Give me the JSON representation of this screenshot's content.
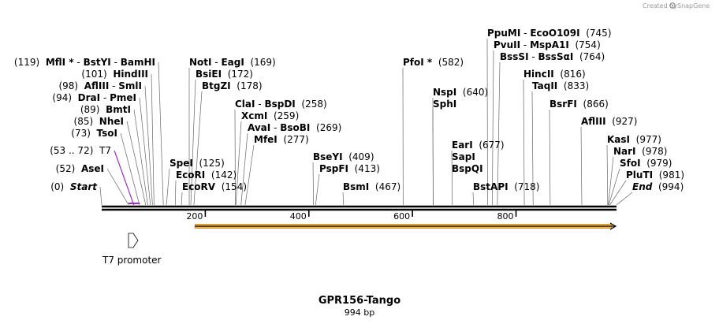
{
  "credit": {
    "text": "Created by",
    "brand": "SnapGene"
  },
  "title": "GPR156-Tango",
  "subtitle": "994 bp",
  "length": 994,
  "ticks": [
    {
      "label": "200",
      "pos": 200
    },
    {
      "label": "400",
      "pos": 400
    },
    {
      "label": "600",
      "pos": 600
    },
    {
      "label": "800",
      "pos": 800
    }
  ],
  "feature": {
    "label": "T7 promoter",
    "start": 53,
    "end": 72
  },
  "cds": {
    "start": 180,
    "end": 994
  },
  "labels": [
    {
      "id": "start",
      "parts": [
        {
          "t": "(0)",
          "s": "pos"
        },
        {
          "t": "  "
        },
        {
          "t": "Start",
          "s": "it"
        }
      ],
      "sites": [
        0
      ]
    },
    {
      "id": "asei",
      "parts": [
        {
          "t": "(52)",
          "s": "pos"
        },
        {
          "t": "  "
        },
        {
          "t": "AseI",
          "s": "enz"
        }
      ],
      "sites": [
        52
      ]
    },
    {
      "id": "t7",
      "parts": [
        {
          "t": "(53 .. 72)",
          "s": "pos"
        },
        {
          "t": "  "
        },
        {
          "t": "T7",
          "s": "pos"
        }
      ],
      "sites": [
        62
      ],
      "purple": true
    },
    {
      "id": "tsoi",
      "parts": [
        {
          "t": "(73)",
          "s": "pos"
        },
        {
          "t": "  "
        },
        {
          "t": "TsoI",
          "s": "enz"
        }
      ],
      "sites": [
        73
      ]
    },
    {
      "id": "nhei",
      "parts": [
        {
          "t": "(85)",
          "s": "pos"
        },
        {
          "t": "  "
        },
        {
          "t": "NheI",
          "s": "enz"
        }
      ],
      "sites": [
        85
      ]
    },
    {
      "id": "bmti",
      "parts": [
        {
          "t": "(89)",
          "s": "pos"
        },
        {
          "t": "  "
        },
        {
          "t": "BmtI",
          "s": "enz"
        }
      ],
      "sites": [
        89
      ]
    },
    {
      "id": "drai",
      "parts": [
        {
          "t": "(94)",
          "s": "pos"
        },
        {
          "t": "  "
        },
        {
          "t": "DraI",
          "s": "enz"
        },
        {
          "t": " - "
        },
        {
          "t": "PmeI",
          "s": "enz"
        }
      ],
      "sites": [
        94
      ]
    },
    {
      "id": "afliii",
      "parts": [
        {
          "t": "(98)",
          "s": "pos"
        },
        {
          "t": "  "
        },
        {
          "t": "AflIII",
          "s": "enz"
        },
        {
          "t": " - "
        },
        {
          "t": "SmlI",
          "s": "enz"
        }
      ],
      "sites": [
        98
      ]
    },
    {
      "id": "hindiii",
      "parts": [
        {
          "t": "(101)",
          "s": "pos"
        },
        {
          "t": "  "
        },
        {
          "t": "HindIII",
          "s": "enz"
        }
      ],
      "sites": [
        101
      ]
    },
    {
      "id": "mfli",
      "parts": [
        {
          "t": "(119)",
          "s": "pos"
        },
        {
          "t": "  "
        },
        {
          "t": "MflI *",
          "s": "enz"
        },
        {
          "t": " - "
        },
        {
          "t": "BstYI",
          "s": "enz"
        },
        {
          "t": " - "
        },
        {
          "t": "BamHI",
          "s": "enz"
        }
      ],
      "sites": [
        119
      ]
    },
    {
      "id": "spei",
      "parts": [
        {
          "t": "SpeI",
          "s": "enz"
        },
        {
          "t": "  "
        },
        {
          "t": "(125)",
          "s": "pos"
        }
      ],
      "sites": [
        125
      ]
    },
    {
      "id": "ecori",
      "parts": [
        {
          "t": "EcoRI",
          "s": "enz"
        },
        {
          "t": "  "
        },
        {
          "t": "(142)",
          "s": "pos"
        }
      ],
      "sites": [
        142
      ]
    },
    {
      "id": "ecorv",
      "parts": [
        {
          "t": "EcoRV",
          "s": "enz"
        },
        {
          "t": "  "
        },
        {
          "t": "(154)",
          "s": "pos"
        }
      ],
      "sites": [
        154
      ]
    },
    {
      "id": "noti",
      "parts": [
        {
          "t": "NotI",
          "s": "enz"
        },
        {
          "t": " - "
        },
        {
          "t": "EagI",
          "s": "enz"
        },
        {
          "t": "  "
        },
        {
          "t": "(169)",
          "s": "pos"
        }
      ],
      "sites": [
        169
      ]
    },
    {
      "id": "bsiei",
      "parts": [
        {
          "t": "BsiEI",
          "s": "enz"
        },
        {
          "t": "  "
        },
        {
          "t": "(172)",
          "s": "pos"
        }
      ],
      "sites": [
        172
      ]
    },
    {
      "id": "btgzi",
      "parts": [
        {
          "t": "BtgZI",
          "s": "enz"
        },
        {
          "t": "  "
        },
        {
          "t": "(178)",
          "s": "pos"
        }
      ],
      "sites": [
        178
      ]
    },
    {
      "id": "clai",
      "parts": [
        {
          "t": "ClaI",
          "s": "enz"
        },
        {
          "t": " - "
        },
        {
          "t": "BspDI",
          "s": "enz"
        },
        {
          "t": "  "
        },
        {
          "t": "(258)",
          "s": "pos"
        }
      ],
      "sites": [
        258
      ]
    },
    {
      "id": "xcmi",
      "parts": [
        {
          "t": "XcmI",
          "s": "enz"
        },
        {
          "t": "  "
        },
        {
          "t": "(259)",
          "s": "pos"
        }
      ],
      "sites": [
        259
      ]
    },
    {
      "id": "avai",
      "parts": [
        {
          "t": "AvaI",
          "s": "enz"
        },
        {
          "t": " - "
        },
        {
          "t": "BsoBI",
          "s": "enz"
        },
        {
          "t": "  "
        },
        {
          "t": "(269)",
          "s": "pos"
        }
      ],
      "sites": [
        269
      ]
    },
    {
      "id": "mfei",
      "parts": [
        {
          "t": "MfeI",
          "s": "enz"
        },
        {
          "t": "  "
        },
        {
          "t": "(277)",
          "s": "pos"
        }
      ],
      "sites": [
        277
      ]
    },
    {
      "id": "bseyi",
      "parts": [
        {
          "t": "BseYI",
          "s": "enz"
        },
        {
          "t": "  "
        },
        {
          "t": "(409)",
          "s": "pos"
        }
      ],
      "sites": [
        409
      ]
    },
    {
      "id": "pspfi",
      "parts": [
        {
          "t": "PspFI",
          "s": "enz"
        },
        {
          "t": "  "
        },
        {
          "t": "(413)",
          "s": "pos"
        }
      ],
      "sites": [
        413
      ]
    },
    {
      "id": "bsmi",
      "parts": [
        {
          "t": "BsmI",
          "s": "enz"
        },
        {
          "t": "  "
        },
        {
          "t": "(467)",
          "s": "pos"
        }
      ],
      "sites": [
        467
      ]
    },
    {
      "id": "pfoi",
      "parts": [
        {
          "t": "PfoI *",
          "s": "enz"
        },
        {
          "t": "  "
        },
        {
          "t": "(582)",
          "s": "pos"
        }
      ],
      "sites": [
        582
      ]
    },
    {
      "id": "nspi",
      "parts": [
        {
          "t": "NspI",
          "s": "enz"
        },
        {
          "t": "  "
        },
        {
          "t": "(640)",
          "s": "pos"
        }
      ],
      "sites": [
        640
      ]
    },
    {
      "id": "sphi",
      "parts": [
        {
          "t": "SphI",
          "s": "enz"
        }
      ],
      "sites": [
        640
      ]
    },
    {
      "id": "eari",
      "parts": [
        {
          "t": "EarI",
          "s": "enz"
        },
        {
          "t": "  "
        },
        {
          "t": "(677)",
          "s": "pos"
        }
      ],
      "sites": [
        677
      ]
    },
    {
      "id": "sapi",
      "parts": [
        {
          "t": "SapI",
          "s": "enz"
        }
      ],
      "sites": [
        677
      ]
    },
    {
      "id": "bspqi",
      "parts": [
        {
          "t": "BspQI",
          "s": "enz"
        }
      ],
      "sites": [
        677
      ]
    },
    {
      "id": "bstapi",
      "parts": [
        {
          "t": "BstAPI",
          "s": "enz"
        },
        {
          "t": "  "
        },
        {
          "t": "(718)",
          "s": "pos"
        }
      ],
      "sites": [
        718
      ]
    },
    {
      "id": "ppumi",
      "parts": [
        {
          "t": "PpuMI",
          "s": "enz"
        },
        {
          "t": " - "
        },
        {
          "t": "EcoO109I",
          "s": "enz"
        },
        {
          "t": "  "
        },
        {
          "t": "(745)",
          "s": "pos"
        }
      ],
      "sites": [
        745
      ]
    },
    {
      "id": "pvuii",
      "parts": [
        {
          "t": "PvuII",
          "s": "enz"
        },
        {
          "t": " - "
        },
        {
          "t": "MspA1I",
          "s": "enz"
        },
        {
          "t": "  "
        },
        {
          "t": "(754)",
          "s": "pos"
        }
      ],
      "sites": [
        754
      ]
    },
    {
      "id": "bsssi",
      "parts": [
        {
          "t": "BssSI",
          "s": "enz"
        },
        {
          "t": " - "
        },
        {
          "t": "BssSαI",
          "s": "enz"
        },
        {
          "t": "  "
        },
        {
          "t": "(764)",
          "s": "pos"
        }
      ],
      "sites": [
        764
      ]
    },
    {
      "id": "hincii",
      "parts": [
        {
          "t": "HincII",
          "s": "enz"
        },
        {
          "t": "  "
        },
        {
          "t": "(816)",
          "s": "pos"
        }
      ],
      "sites": [
        816
      ]
    },
    {
      "id": "taqii",
      "parts": [
        {
          "t": "TaqII",
          "s": "enz"
        },
        {
          "t": "  "
        },
        {
          "t": "(833)",
          "s": "pos"
        }
      ],
      "sites": [
        833
      ]
    },
    {
      "id": "bsrfi",
      "parts": [
        {
          "t": "BsrFI",
          "s": "enz"
        },
        {
          "t": "  "
        },
        {
          "t": "(866)",
          "s": "pos"
        }
      ],
      "sites": [
        866
      ]
    },
    {
      "id": "afliii2",
      "parts": [
        {
          "t": "AflIII",
          "s": "enz"
        },
        {
          "t": "  "
        },
        {
          "t": "(927)",
          "s": "pos"
        }
      ],
      "sites": [
        927
      ]
    },
    {
      "id": "kasi",
      "parts": [
        {
          "t": "KasI",
          "s": "enz"
        },
        {
          "t": "  "
        },
        {
          "t": "(977)",
          "s": "pos"
        }
      ],
      "sites": [
        977
      ]
    },
    {
      "id": "nari",
      "parts": [
        {
          "t": "NarI",
          "s": "enz"
        },
        {
          "t": "  "
        },
        {
          "t": "(978)",
          "s": "pos"
        }
      ],
      "sites": [
        978
      ]
    },
    {
      "id": "sfoi",
      "parts": [
        {
          "t": "SfoI",
          "s": "enz"
        },
        {
          "t": "  "
        },
        {
          "t": "(979)",
          "s": "pos"
        }
      ],
      "sites": [
        979
      ]
    },
    {
      "id": "pluti",
      "parts": [
        {
          "t": "PluTI",
          "s": "enz"
        },
        {
          "t": "  "
        },
        {
          "t": "(981)",
          "s": "pos"
        }
      ],
      "sites": [
        981
      ]
    },
    {
      "id": "end",
      "parts": [
        {
          "t": "End",
          "s": "it"
        },
        {
          "t": "  "
        },
        {
          "t": "(994)",
          "s": "pos"
        }
      ],
      "sites": [
        994
      ]
    }
  ]
}
